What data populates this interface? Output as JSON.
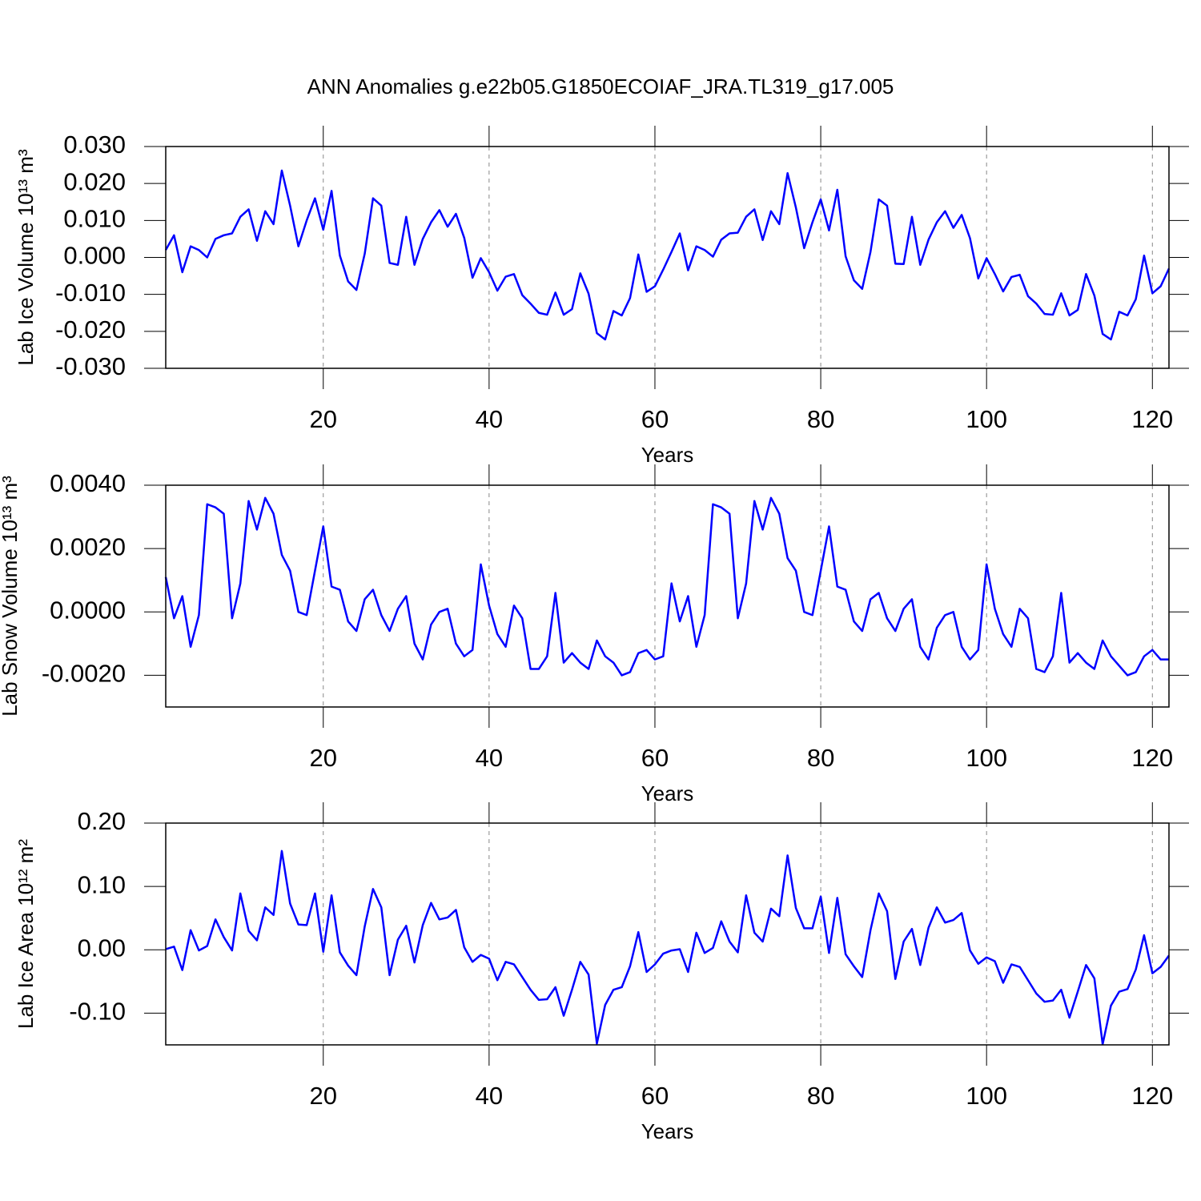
{
  "chart_data": [
    {
      "type": "line",
      "title": "ANN Anomalies g.e22b05.G1850ECOIAF_JRA.TL319_g17.005",
      "xlabel": "Years",
      "ylabel": "Lab Ice Volume 10¹³ m³",
      "color": "#0000ff",
      "grid": true,
      "xlim": [
        1,
        122
      ],
      "xticks": [
        20,
        40,
        60,
        80,
        100,
        120
      ],
      "ylim": [
        -0.03,
        0.03
      ],
      "yticks": [
        {
          "value": 0.03,
          "label": "0.030"
        },
        {
          "value": 0.02,
          "label": "0.020"
        },
        {
          "value": 0.01,
          "label": "0.010"
        },
        {
          "value": 0,
          "label": "0.000"
        },
        {
          "value": -0.01,
          "label": "-0.010"
        },
        {
          "value": -0.02,
          "label": "-0.020"
        },
        {
          "value": -0.03,
          "label": "-0.030"
        }
      ],
      "x": [
        1,
        2,
        3,
        4,
        5,
        6,
        7,
        8,
        9,
        10,
        11,
        12,
        13,
        14,
        15,
        16,
        17,
        18,
        19,
        20,
        21,
        22,
        23,
        24,
        25,
        26,
        27,
        28,
        29,
        30,
        31,
        32,
        33,
        34,
        35,
        36,
        37,
        38,
        39,
        40,
        41,
        42,
        43,
        44,
        45,
        46,
        47,
        48,
        49,
        50,
        51,
        52,
        53,
        54,
        55,
        56,
        57,
        58,
        59,
        60,
        61,
        62,
        63,
        64,
        65,
        66,
        67,
        68,
        69,
        70,
        71,
        72,
        73,
        74,
        75,
        76,
        77,
        78,
        79,
        80,
        81,
        82,
        83,
        84,
        85,
        86,
        87,
        88,
        89,
        90,
        91,
        92,
        93,
        94,
        95,
        96,
        97,
        98,
        99,
        100,
        101,
        102,
        103,
        104,
        105,
        106,
        107,
        108,
        109,
        110,
        111,
        112,
        113,
        114,
        115,
        116,
        117,
        118,
        119,
        120,
        121,
        122
      ],
      "values": [
        0.002,
        0.006,
        -0.004,
        0.003,
        0.002,
        0.0,
        0.005,
        0.006,
        0.0065,
        0.011,
        0.013,
        0.0045,
        0.0125,
        0.009,
        0.0235,
        0.014,
        0.003,
        0.01,
        0.016,
        0.0075,
        0.018,
        0.0005,
        -0.0065,
        -0.0088,
        0.001,
        0.016,
        0.014,
        -0.0015,
        -0.002,
        0.011,
        -0.002,
        0.005,
        0.0095,
        0.0128,
        0.0083,
        0.0118,
        0.0053,
        -0.0055,
        -0.0002,
        -0.004,
        -0.009,
        -0.0052,
        -0.0045,
        -0.0102,
        -0.0125,
        -0.015,
        -0.0155,
        -0.0095,
        -0.0155,
        -0.014,
        -0.0043,
        -0.0098,
        -0.0205,
        -0.0222,
        -0.0145,
        -0.0157,
        -0.011,
        0.0008,
        -0.0093,
        -0.0078,
        -0.0033,
        0.0015,
        0.0065,
        -0.0035,
        0.003,
        0.002,
        0.0002,
        0.0048,
        0.0065,
        0.0067,
        0.011,
        0.013,
        0.0047,
        0.0125,
        0.009,
        0.0228,
        0.0135,
        0.0025,
        0.0095,
        0.0157,
        0.0073,
        0.0183,
        0.0003,
        -0.0062,
        -0.0085,
        0.0015,
        0.0157,
        0.014,
        -0.0017,
        -0.0018,
        0.011,
        -0.002,
        0.0048,
        0.0095,
        0.0125,
        0.008,
        0.0115,
        0.0052,
        -0.0057,
        -0.0002,
        -0.0045,
        -0.0092,
        -0.0053,
        -0.0047,
        -0.0105,
        -0.0125,
        -0.0153,
        -0.0155,
        -0.0097,
        -0.0157,
        -0.0142,
        -0.0045,
        -0.0103,
        -0.0207,
        -0.0222,
        -0.0147,
        -0.0157,
        -0.0113,
        0.0005,
        -0.0097,
        -0.0078,
        -0.003
      ]
    },
    {
      "type": "line",
      "xlabel": "Years",
      "ylabel": "Lab Snow Volume 10¹³ m³",
      "color": "#0000ff",
      "grid": true,
      "xlim": [
        1,
        122
      ],
      "xticks": [
        20,
        40,
        60,
        80,
        100,
        120
      ],
      "ylim": [
        -0.003,
        0.004
      ],
      "yticks": [
        {
          "value": 0.004,
          "label": "0.0040"
        },
        {
          "value": 0.002,
          "label": "0.0020"
        },
        {
          "value": 0,
          "label": "0.0000"
        },
        {
          "value": -0.002,
          "label": "-0.0020"
        }
      ],
      "x": [
        1,
        2,
        3,
        4,
        5,
        6,
        7,
        8,
        9,
        10,
        11,
        12,
        13,
        14,
        15,
        16,
        17,
        18,
        19,
        20,
        21,
        22,
        23,
        24,
        25,
        26,
        27,
        28,
        29,
        30,
        31,
        32,
        33,
        34,
        35,
        36,
        37,
        38,
        39,
        40,
        41,
        42,
        43,
        44,
        45,
        46,
        47,
        48,
        49,
        50,
        51,
        52,
        53,
        54,
        55,
        56,
        57,
        58,
        59,
        60,
        61,
        62,
        63,
        64,
        65,
        66,
        67,
        68,
        69,
        70,
        71,
        72,
        73,
        74,
        75,
        76,
        77,
        78,
        79,
        80,
        81,
        82,
        83,
        84,
        85,
        86,
        87,
        88,
        89,
        90,
        91,
        92,
        93,
        94,
        95,
        96,
        97,
        98,
        99,
        100,
        101,
        102,
        103,
        104,
        105,
        106,
        107,
        108,
        109,
        110,
        111,
        112,
        113,
        114,
        115,
        116,
        117,
        118,
        119,
        120,
        121,
        122
      ],
      "values": [
        0.0011,
        -0.0002,
        0.0005,
        -0.0011,
        -0.0001,
        0.0034,
        0.0033,
        0.0031,
        -0.0002,
        0.0009,
        0.0035,
        0.0026,
        0.0036,
        0.0031,
        0.0018,
        0.0013,
        0.0,
        -0.0001,
        0.0013,
        0.0027,
        0.0008,
        0.0007,
        -0.0003,
        -0.0006,
        0.0004,
        0.0007,
        -0.0001,
        -0.0006,
        0.0001,
        0.0005,
        -0.001,
        -0.0015,
        -0.0004,
        0.0,
        0.0001,
        -0.001,
        -0.0014,
        -0.0012,
        0.0015,
        0.0002,
        -0.0007,
        -0.0011,
        0.0002,
        -0.0002,
        -0.0018,
        -0.0018,
        -0.0014,
        0.0006,
        -0.0016,
        -0.0013,
        -0.0016,
        -0.0018,
        -0.0009,
        -0.0014,
        -0.0016,
        -0.002,
        -0.0019,
        -0.0013,
        -0.0012,
        -0.0015,
        -0.0014,
        0.0009,
        -0.0003,
        0.0005,
        -0.0011,
        -0.0001,
        0.0034,
        0.0033,
        0.0031,
        -0.0002,
        0.0009,
        0.0035,
        0.0026,
        0.0036,
        0.0031,
        0.0017,
        0.0013,
        0.0,
        -0.0001,
        0.0013,
        0.0027,
        0.0008,
        0.0007,
        -0.0003,
        -0.0006,
        0.0004,
        0.0006,
        -0.0002,
        -0.0006,
        0.0001,
        0.0004,
        -0.0011,
        -0.0015,
        -0.0005,
        -0.0001,
        0.0,
        -0.0011,
        -0.0015,
        -0.0012,
        0.0015,
        0.0001,
        -0.0007,
        -0.0011,
        0.0001,
        -0.0002,
        -0.0018,
        -0.0019,
        -0.0014,
        0.0006,
        -0.0016,
        -0.0013,
        -0.0016,
        -0.0018,
        -0.0009,
        -0.0014,
        -0.0017,
        -0.002,
        -0.0019,
        -0.0014,
        -0.0012,
        -0.0015,
        -0.0015
      ]
    },
    {
      "type": "line",
      "xlabel": "Years",
      "ylabel": "Lab Ice Area 10¹² m²",
      "color": "#0000ff",
      "grid": true,
      "xlim": [
        1,
        122
      ],
      "xticks": [
        20,
        40,
        60,
        80,
        100,
        120
      ],
      "ylim": [
        -0.15,
        0.2
      ],
      "yticks": [
        {
          "value": 0.2,
          "label": "0.20"
        },
        {
          "value": 0.1,
          "label": "0.10"
        },
        {
          "value": 0,
          "label": "0.00"
        },
        {
          "value": -0.1,
          "label": "-0.10"
        }
      ],
      "x": [
        1,
        2,
        3,
        4,
        5,
        6,
        7,
        8,
        9,
        10,
        11,
        12,
        13,
        14,
        15,
        16,
        17,
        18,
        19,
        20,
        21,
        22,
        23,
        24,
        25,
        26,
        27,
        28,
        29,
        30,
        31,
        32,
        33,
        34,
        35,
        36,
        37,
        38,
        39,
        40,
        41,
        42,
        43,
        44,
        45,
        46,
        47,
        48,
        49,
        50,
        51,
        52,
        53,
        54,
        55,
        56,
        57,
        58,
        59,
        60,
        61,
        62,
        63,
        64,
        65,
        66,
        67,
        68,
        69,
        70,
        71,
        72,
        73,
        74,
        75,
        76,
        77,
        78,
        79,
        80,
        81,
        82,
        83,
        84,
        85,
        86,
        87,
        88,
        89,
        90,
        91,
        92,
        93,
        94,
        95,
        96,
        97,
        98,
        99,
        100,
        101,
        102,
        103,
        104,
        105,
        106,
        107,
        108,
        109,
        110,
        111,
        112,
        113,
        114,
        115,
        116,
        117,
        118,
        119,
        120,
        121,
        122
      ],
      "values": [
        0.001,
        0.005,
        -0.032,
        0.031,
        -0.001,
        0.006,
        0.048,
        0.02,
        -0.001,
        0.089,
        0.03,
        0.015,
        0.067,
        0.055,
        0.156,
        0.073,
        0.04,
        0.039,
        0.089,
        -0.003,
        0.086,
        -0.004,
        -0.025,
        -0.04,
        0.037,
        0.096,
        0.067,
        -0.04,
        0.016,
        0.038,
        -0.02,
        0.039,
        0.074,
        0.048,
        0.051,
        0.063,
        0.004,
        -0.019,
        -0.008,
        -0.014,
        -0.048,
        -0.019,
        -0.023,
        -0.043,
        -0.063,
        -0.079,
        -0.078,
        -0.059,
        -0.104,
        -0.063,
        -0.019,
        -0.039,
        -0.148,
        -0.087,
        -0.063,
        -0.059,
        -0.026,
        0.028,
        -0.035,
        -0.023,
        -0.006,
        -0.001,
        0.001,
        -0.035,
        0.027,
        -0.005,
        0.003,
        0.045,
        0.013,
        -0.004,
        0.086,
        0.027,
        0.013,
        0.065,
        0.053,
        0.149,
        0.066,
        0.034,
        0.034,
        0.084,
        -0.005,
        0.082,
        -0.007,
        -0.026,
        -0.043,
        0.031,
        0.089,
        0.061,
        -0.046,
        0.013,
        0.033,
        -0.024,
        0.035,
        0.067,
        0.043,
        0.047,
        0.058,
        -0.001,
        -0.022,
        -0.012,
        -0.018,
        -0.052,
        -0.023,
        -0.027,
        -0.048,
        -0.069,
        -0.082,
        -0.08,
        -0.063,
        -0.107,
        -0.066,
        -0.024,
        -0.045,
        -0.149,
        -0.088,
        -0.066,
        -0.062,
        -0.031,
        0.023,
        -0.037,
        -0.027,
        -0.009
      ]
    }
  ]
}
